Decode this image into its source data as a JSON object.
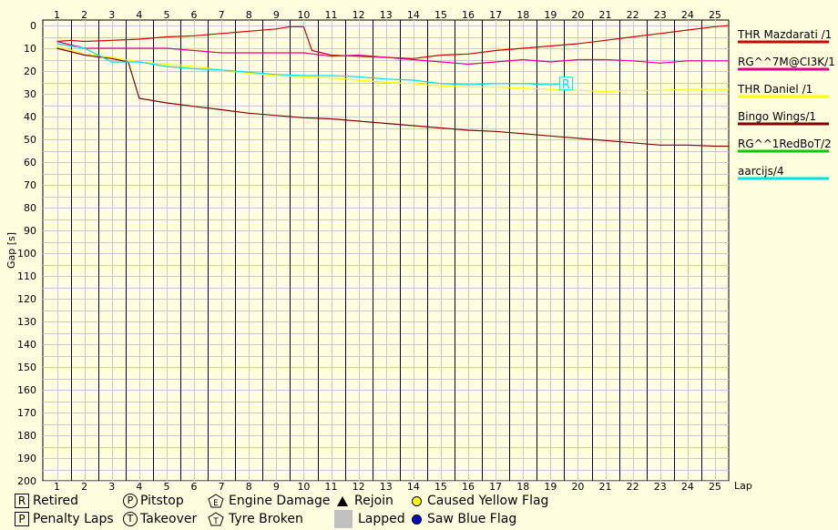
{
  "chart_data": {
    "type": "line",
    "xlabel": "Lap",
    "ylabel": "Gap [s]",
    "x_ticks": [
      1,
      2,
      3,
      4,
      5,
      6,
      7,
      8,
      9,
      10,
      11,
      12,
      13,
      14,
      15,
      16,
      17,
      18,
      19,
      20,
      21,
      22,
      23,
      24,
      25
    ],
    "y_ticks": [
      0,
      10,
      20,
      30,
      40,
      50,
      60,
      70,
      80,
      90,
      100,
      110,
      120,
      130,
      140,
      150,
      160,
      170,
      180,
      190,
      200
    ],
    "ylim": [
      0,
      200
    ],
    "y_inverted": true,
    "grid": true,
    "legend_position": "right",
    "series": [
      {
        "name": "THR Mazdarati /1",
        "color": "#cc0000",
        "points": [
          [
            1,
            7
          ],
          [
            1.5,
            6.5
          ],
          [
            2,
            7
          ],
          [
            3,
            6.5
          ],
          [
            4,
            6
          ],
          [
            5,
            5
          ],
          [
            6,
            4.5
          ],
          [
            7,
            3.5
          ],
          [
            8,
            2.5
          ],
          [
            9,
            1.5
          ],
          [
            9.5,
            0.5
          ],
          [
            9.9,
            0.5
          ],
          [
            10,
            0.5
          ],
          [
            10.3,
            11
          ],
          [
            11,
            13
          ],
          [
            12,
            13.5
          ],
          [
            13,
            14
          ],
          [
            14,
            14.5
          ],
          [
            15,
            13
          ],
          [
            16,
            12.5
          ],
          [
            17,
            11
          ],
          [
            18,
            10
          ],
          [
            19,
            9
          ],
          [
            20,
            8
          ],
          [
            21,
            6.5
          ],
          [
            22,
            5
          ],
          [
            23,
            3.5
          ],
          [
            24,
            2
          ],
          [
            25,
            0.5
          ],
          [
            25.5,
            0
          ]
        ]
      },
      {
        "name": "RG^^7M@CI3K/1",
        "color": "#e0008c",
        "points": [
          [
            1,
            7
          ],
          [
            2,
            10
          ],
          [
            3,
            10
          ],
          [
            4,
            10
          ],
          [
            5,
            10
          ],
          [
            6,
            11
          ],
          [
            7,
            12
          ],
          [
            8,
            12
          ],
          [
            9,
            12
          ],
          [
            10,
            12
          ],
          [
            11,
            13.5
          ],
          [
            12,
            13
          ],
          [
            13,
            14
          ],
          [
            14,
            15
          ],
          [
            15,
            16
          ],
          [
            16,
            17
          ],
          [
            17,
            16
          ],
          [
            18,
            15
          ],
          [
            19,
            16
          ],
          [
            20,
            15
          ],
          [
            21,
            15
          ],
          [
            22,
            15.5
          ],
          [
            23,
            16.5
          ],
          [
            24,
            15.5
          ],
          [
            25,
            15.5
          ],
          [
            25.5,
            15.5
          ]
        ]
      },
      {
        "name": "THR Daniel /1",
        "color": "#ffff00",
        "points": [
          [
            1,
            9
          ],
          [
            2,
            12.5
          ],
          [
            3,
            14
          ],
          [
            4,
            16
          ],
          [
            5,
            17
          ],
          [
            6,
            18
          ],
          [
            7,
            19.5
          ],
          [
            8,
            21
          ],
          [
            9,
            22
          ],
          [
            10,
            22.5
          ],
          [
            11,
            23
          ],
          [
            12,
            24
          ],
          [
            13,
            25
          ],
          [
            14,
            25.5
          ],
          [
            15,
            26.5
          ],
          [
            16,
            27
          ],
          [
            17,
            27
          ],
          [
            18,
            27.5
          ],
          [
            19,
            28
          ],
          [
            20,
            28.5
          ],
          [
            21,
            29
          ],
          [
            22,
            28.5
          ],
          [
            23,
            28.5
          ],
          [
            24,
            28
          ],
          [
            25,
            28
          ],
          [
            25.5,
            28
          ]
        ]
      },
      {
        "name": "Bingo Wings/1",
        "color": "#800000",
        "points": [
          [
            1,
            10
          ],
          [
            2,
            13
          ],
          [
            3,
            14.5
          ],
          [
            3.6,
            16
          ],
          [
            4,
            32
          ],
          [
            5,
            34
          ],
          [
            6,
            35.5
          ],
          [
            7,
            37
          ],
          [
            8,
            38.5
          ],
          [
            9,
            39.5
          ],
          [
            10,
            40.5
          ],
          [
            11,
            41
          ],
          [
            12,
            42
          ],
          [
            13,
            43
          ],
          [
            14,
            44
          ],
          [
            15,
            45
          ],
          [
            16,
            46
          ],
          [
            17,
            46.5
          ],
          [
            18,
            47.5
          ],
          [
            19,
            48.5
          ],
          [
            20,
            49.5
          ],
          [
            21,
            50.5
          ],
          [
            22,
            51.5
          ],
          [
            23,
            52.5
          ],
          [
            24,
            52.5
          ],
          [
            25,
            53
          ],
          [
            25.5,
            53
          ]
        ]
      },
      {
        "name": "RG^^1RedBoT/2",
        "color": "#00cc00",
        "points": []
      },
      {
        "name": "aarcijs/4",
        "color": "#00e0e0",
        "points": [
          [
            1,
            8
          ],
          [
            2,
            10
          ],
          [
            3,
            16
          ],
          [
            4,
            16
          ],
          [
            5,
            18
          ],
          [
            6,
            19
          ],
          [
            7,
            19.5
          ],
          [
            8,
            20.5
          ],
          [
            9,
            21.5
          ],
          [
            10,
            22
          ],
          [
            11,
            22
          ],
          [
            12,
            22.5
          ],
          [
            13,
            23.5
          ],
          [
            14,
            24
          ],
          [
            15,
            25.5
          ],
          [
            16,
            26
          ],
          [
            17,
            25.5
          ],
          [
            18,
            25.5
          ],
          [
            19,
            26
          ],
          [
            19.5,
            25.5
          ]
        ]
      }
    ],
    "markers": [
      {
        "type": "R",
        "series": "aarcijs/4",
        "x": 19.5,
        "y": 25.5,
        "label": "R"
      }
    ]
  },
  "legend_keys": {
    "retired": {
      "symbol": "R",
      "label": "Retired"
    },
    "penalty": {
      "symbol": "P",
      "label": "Penalty Laps"
    },
    "pitstop": {
      "symbol": "P",
      "label": "Pitstop"
    },
    "takeover": {
      "symbol": "T",
      "label": "Takeover"
    },
    "engine": {
      "symbol": "E",
      "label": "Engine Damage"
    },
    "tyre": {
      "symbol": "T",
      "label": "Tyre Broken"
    },
    "rejoin": {
      "label": "Rejoin"
    },
    "lapped": {
      "label": "Lapped"
    },
    "yellow": {
      "label": "Caused Yellow Flag",
      "color": "#ffff00"
    },
    "blue": {
      "label": "Saw Blue Flag",
      "color": "#0000cc"
    }
  }
}
